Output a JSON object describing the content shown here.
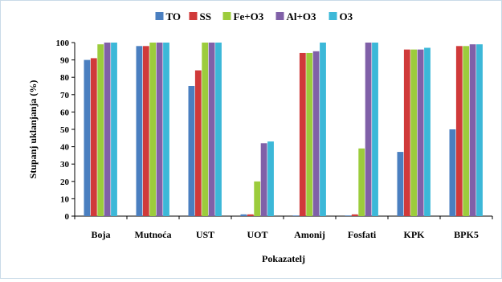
{
  "chart_data": {
    "type": "bar",
    "title": "",
    "xlabel": "Pokazatelj",
    "ylabel": "Stupanj uklanjanja (%)",
    "ylim": [
      0,
      100
    ],
    "yticks": [
      0,
      10,
      20,
      30,
      40,
      50,
      60,
      70,
      80,
      90,
      100
    ],
    "grid": false,
    "legend_position": "top",
    "categories": [
      "Boja",
      "Mutnoća",
      "UST",
      "UOT",
      "Amonij",
      "Fosfati",
      "KPK",
      "BPK5"
    ],
    "series": [
      {
        "name": "TO",
        "color": "#4a7fc0",
        "values": [
          90,
          98,
          75,
          1,
          0,
          0,
          37,
          50
        ]
      },
      {
        "name": "SS",
        "color": "#d03a3a",
        "values": [
          91,
          98,
          84,
          1,
          94,
          1,
          96,
          98
        ]
      },
      {
        "name": "Fe+O3",
        "color": "#9ccc3c",
        "values": [
          99,
          100,
          100,
          20,
          94,
          39,
          96,
          98
        ]
      },
      {
        "name": "Al+O3",
        "color": "#8060a8",
        "values": [
          100,
          100,
          100,
          42,
          95,
          100,
          96,
          99
        ]
      },
      {
        "name": "O3",
        "color": "#3cb8d8",
        "values": [
          100,
          100,
          100,
          43,
          100,
          100,
          97,
          99
        ]
      }
    ]
  }
}
